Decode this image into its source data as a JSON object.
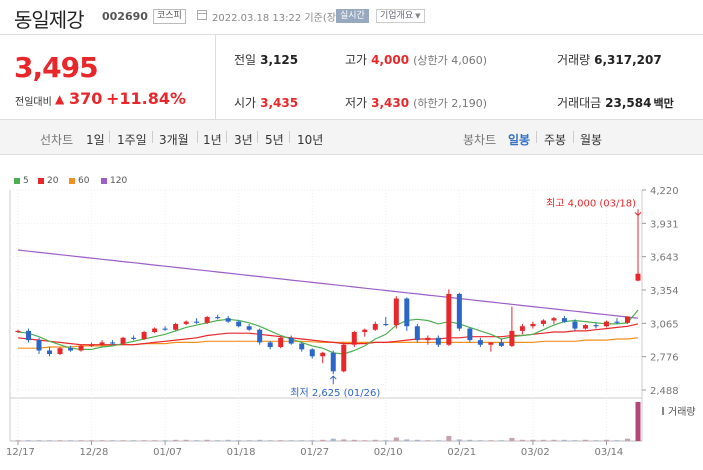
{
  "header": {
    "stock_name": "동일제강",
    "stock_code": "002690",
    "market": "코스피",
    "datetime": "2022.03.18 13:22 기준(장중)",
    "realtime_label": "실시간",
    "company_label": "기업개요"
  },
  "price": {
    "current": "3,495",
    "change_label": "전일대비",
    "change_value": "370",
    "change_pct": "+11.84%"
  },
  "stats": {
    "prev_label": "전일",
    "prev_value": "3,125",
    "high_label": "고가",
    "high_value": "4,000",
    "high_sub": "(상한가 4,060)",
    "volume_label": "거래량",
    "volume_value": "6,317,207",
    "open_label": "시가",
    "open_value": "3,435",
    "low_label": "저가",
    "low_value": "3,430",
    "low_sub": "(하한가 2,190)",
    "amount_label": "거래대금",
    "amount_value": "23,584",
    "amount_unit": "백만"
  },
  "period_bar": {
    "line_chart_label": "선차트",
    "periods": [
      "1일",
      "1주일",
      "3개월",
      "1년",
      "3년",
      "5년",
      "10년"
    ],
    "candle_label": "봉차트",
    "candle_periods": [
      "일봉",
      "주봉",
      "월봉"
    ],
    "active_candle": "일봉"
  },
  "legend": [
    {
      "label": "5",
      "color": "#4caf50"
    },
    {
      "label": "20",
      "color": "#e8272b"
    },
    {
      "label": "60",
      "color": "#f0901e"
    },
    {
      "label": "120",
      "color": "#9c5ec8"
    }
  ],
  "colors": {
    "up": "#e8272b",
    "down": "#2c66c9",
    "accent": "#3271c4"
  },
  "chart_data": {
    "type": "candlestick",
    "y_ticks": [
      "4,220",
      "3,931",
      "3,643",
      "3,354",
      "3,065",
      "2,776",
      "2,488"
    ],
    "ylim": [
      2488,
      4220
    ],
    "x_ticks": [
      "12/17",
      "12/28",
      "01/07",
      "01/18",
      "01/27",
      "02/10",
      "02/21",
      "03/02",
      "03/14"
    ],
    "high_annotation": "최고 4,000 (03/18)",
    "low_annotation": "최저 2,625 (01/26)",
    "volume_label": "거래량",
    "candles": [
      [
        2990,
        3010,
        2980,
        3000
      ],
      [
        3000,
        3020,
        2900,
        2920
      ],
      [
        2920,
        2940,
        2800,
        2830
      ],
      [
        2830,
        2860,
        2780,
        2800
      ],
      [
        2800,
        2860,
        2790,
        2850
      ],
      [
        2850,
        2870,
        2820,
        2830
      ],
      [
        2830,
        2880,
        2820,
        2870
      ],
      [
        2870,
        2900,
        2860,
        2880
      ],
      [
        2880,
        2920,
        2870,
        2900
      ],
      [
        2900,
        2920,
        2880,
        2890
      ],
      [
        2890,
        2950,
        2880,
        2940
      ],
      [
        2940,
        2960,
        2920,
        2930
      ],
      [
        2930,
        3000,
        2920,
        2990
      ],
      [
        2990,
        3030,
        2980,
        3020
      ],
      [
        3020,
        3040,
        3000,
        3010
      ],
      [
        3010,
        3070,
        3000,
        3060
      ],
      [
        3060,
        3090,
        3050,
        3080
      ],
      [
        3080,
        3110,
        3060,
        3070
      ],
      [
        3070,
        3130,
        3060,
        3120
      ],
      [
        3120,
        3140,
        3100,
        3110
      ],
      [
        3110,
        3130,
        3070,
        3080
      ],
      [
        3080,
        3090,
        3030,
        3040
      ],
      [
        3040,
        3060,
        3000,
        3010
      ],
      [
        3010,
        3020,
        2880,
        2900
      ],
      [
        2900,
        2910,
        2840,
        2860
      ],
      [
        2860,
        2950,
        2850,
        2940
      ],
      [
        2940,
        2960,
        2880,
        2890
      ],
      [
        2890,
        2900,
        2820,
        2840
      ],
      [
        2840,
        2850,
        2760,
        2780
      ],
      [
        2780,
        2820,
        2720,
        2810
      ],
      [
        2810,
        2830,
        2625,
        2650
      ],
      [
        2650,
        2900,
        2640,
        2880
      ],
      [
        2880,
        3000,
        2860,
        2990
      ],
      [
        2990,
        3020,
        2950,
        3010
      ],
      [
        3010,
        3080,
        3000,
        3060
      ],
      [
        3060,
        3120,
        3040,
        3050
      ],
      [
        3050,
        3300,
        3020,
        3280
      ],
      [
        3280,
        3290,
        3000,
        3040
      ],
      [
        3040,
        3060,
        2900,
        2920
      ],
      [
        2920,
        2960,
        2880,
        2940
      ],
      [
        2940,
        2960,
        2860,
        2880
      ],
      [
        2880,
        3360,
        2870,
        3320
      ],
      [
        3320,
        3330,
        3000,
        3020
      ],
      [
        3020,
        3030,
        2900,
        2920
      ],
      [
        2920,
        2940,
        2860,
        2880
      ],
      [
        2880,
        2900,
        2820,
        2900
      ],
      [
        2900,
        2930,
        2860,
        2870
      ],
      [
        2870,
        3210,
        2860,
        3000
      ],
      [
        3000,
        3060,
        2970,
        3040
      ],
      [
        3040,
        3080,
        3020,
        3060
      ],
      [
        3060,
        3100,
        3040,
        3090
      ],
      [
        3090,
        3120,
        3060,
        3110
      ],
      [
        3110,
        3130,
        3070,
        3080
      ],
      [
        3080,
        3100,
        3000,
        3020
      ],
      [
        3020,
        3060,
        3010,
        3050
      ],
      [
        3050,
        3070,
        3020,
        3040
      ],
      [
        3040,
        3090,
        3030,
        3080
      ],
      [
        3080,
        3110,
        3060,
        3070
      ],
      [
        3070,
        3125,
        3060,
        3125
      ],
      [
        3435,
        4000,
        3430,
        3495
      ]
    ],
    "ma5": [
      2990,
      2980,
      2950,
      2910,
      2880,
      2850,
      2840,
      2840,
      2860,
      2870,
      2890,
      2910,
      2930,
      2950,
      2970,
      3000,
      3030,
      3050,
      3070,
      3090,
      3100,
      3090,
      3070,
      3040,
      3000,
      2960,
      2930,
      2900,
      2870,
      2850,
      2810,
      2800,
      2830,
      2870,
      2930,
      2970,
      3050,
      3090,
      3100,
      3090,
      3060,
      3080,
      3060,
      3030,
      3000,
      2970,
      2930,
      2950,
      2960,
      2970,
      3010,
      3050,
      3080,
      3090,
      3080,
      3070,
      3060,
      3060,
      3070,
      3180
    ],
    "ma20": [
      2940,
      2930,
      2920,
      2910,
      2900,
      2890,
      2880,
      2880,
      2880,
      2880,
      2880,
      2880,
      2890,
      2900,
      2910,
      2920,
      2930,
      2940,
      2960,
      2970,
      2980,
      2980,
      2980,
      2970,
      2960,
      2950,
      2940,
      2930,
      2920,
      2910,
      2900,
      2890,
      2890,
      2890,
      2900,
      2900,
      2910,
      2920,
      2930,
      2930,
      2930,
      2940,
      2940,
      2950,
      2950,
      2950,
      2950,
      2960,
      2960,
      2970,
      2980,
      2990,
      2990,
      3000,
      3000,
      3010,
      3020,
      3030,
      3040,
      3060
    ],
    "ma60": [
      2850,
      2850,
      2850,
      2860,
      2860,
      2860,
      2870,
      2870,
      2870,
      2880,
      2880,
      2880,
      2890,
      2890,
      2890,
      2900,
      2900,
      2900,
      2910,
      2910,
      2910,
      2910,
      2910,
      2910,
      2910,
      2910,
      2910,
      2910,
      2905,
      2900,
      2900,
      2900,
      2900,
      2900,
      2900,
      2900,
      2900,
      2900,
      2900,
      2900,
      2900,
      2900,
      2900,
      2900,
      2900,
      2900,
      2900,
      2900,
      2900,
      2900,
      2910,
      2910,
      2910,
      2910,
      2920,
      2920,
      2920,
      2930,
      2930,
      2940
    ],
    "ma120": [
      3700,
      3690,
      3680,
      3670,
      3660,
      3650,
      3640,
      3630,
      3620,
      3610,
      3600,
      3590,
      3580,
      3570,
      3560,
      3550,
      3540,
      3530,
      3520,
      3510,
      3500,
      3490,
      3480,
      3470,
      3460,
      3450,
      3440,
      3430,
      3420,
      3410,
      3400,
      3390,
      3380,
      3370,
      3360,
      3350,
      3340,
      3330,
      3320,
      3310,
      3300,
      3290,
      3280,
      3270,
      3260,
      3250,
      3240,
      3230,
      3220,
      3210,
      3200,
      3190,
      3180,
      3170,
      3160,
      3150,
      3140,
      3130,
      3120,
      3110
    ],
    "volume": [
      0.02,
      0.02,
      0.02,
      0.02,
      0.02,
      0.02,
      0.02,
      0.02,
      0.02,
      0.02,
      0.02,
      0.02,
      0.02,
      0.02,
      0.02,
      0.03,
      0.03,
      0.02,
      0.03,
      0.02,
      0.03,
      0.02,
      0.02,
      0.03,
      0.02,
      0.02,
      0.02,
      0.02,
      0.02,
      0.03,
      0.06,
      0.04,
      0.03,
      0.02,
      0.03,
      0.02,
      0.09,
      0.04,
      0.03,
      0.02,
      0.02,
      0.13,
      0.04,
      0.03,
      0.02,
      0.02,
      0.02,
      0.08,
      0.03,
      0.03,
      0.03,
      0.03,
      0.03,
      0.02,
      0.03,
      0.02,
      0.03,
      0.02,
      0.06,
      1.0
    ]
  }
}
